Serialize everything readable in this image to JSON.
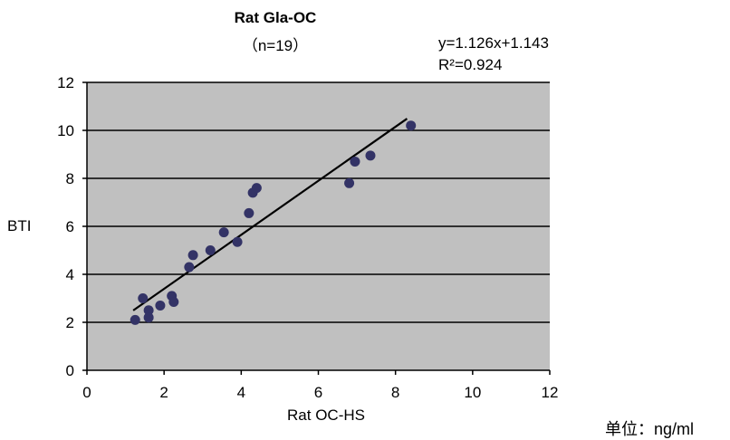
{
  "chart_data": {
    "type": "scatter",
    "title": "Rat Gla-OC",
    "subtitle": "（n=19）",
    "xlabel": "Rat OC-HS",
    "ylabel": "BTI",
    "unit_note": "单位：ng/ml",
    "xlim": [
      0,
      12
    ],
    "ylim": [
      0,
      12
    ],
    "xticks": [
      0,
      2,
      4,
      6,
      8,
      10,
      12
    ],
    "yticks": [
      0,
      2,
      4,
      6,
      8,
      10,
      12
    ],
    "grid": "horizontal",
    "regression": {
      "equation": "y=1.126x+1.143",
      "r2_label": "R²=0.924",
      "slope": 1.126,
      "intercept": 1.143,
      "x_range": [
        1.2,
        8.3
      ]
    },
    "points": [
      {
        "x": 1.25,
        "y": 2.1
      },
      {
        "x": 1.45,
        "y": 3.0
      },
      {
        "x": 1.6,
        "y": 2.5
      },
      {
        "x": 1.6,
        "y": 2.2
      },
      {
        "x": 1.9,
        "y": 2.7
      },
      {
        "x": 2.2,
        "y": 3.1
      },
      {
        "x": 2.25,
        "y": 2.85
      },
      {
        "x": 2.65,
        "y": 4.3
      },
      {
        "x": 2.75,
        "y": 4.8
      },
      {
        "x": 3.2,
        "y": 5.0
      },
      {
        "x": 3.55,
        "y": 5.75
      },
      {
        "x": 3.9,
        "y": 5.35
      },
      {
        "x": 4.2,
        "y": 6.55
      },
      {
        "x": 4.3,
        "y": 7.4
      },
      {
        "x": 4.4,
        "y": 7.6
      },
      {
        "x": 6.8,
        "y": 7.8
      },
      {
        "x": 6.95,
        "y": 8.7
      },
      {
        "x": 7.35,
        "y": 8.95
      },
      {
        "x": 8.4,
        "y": 10.2
      }
    ],
    "colors": {
      "plot_bg": "#c0c0c0",
      "point": "#333366",
      "line": "#000000",
      "grid": "#000000"
    }
  }
}
